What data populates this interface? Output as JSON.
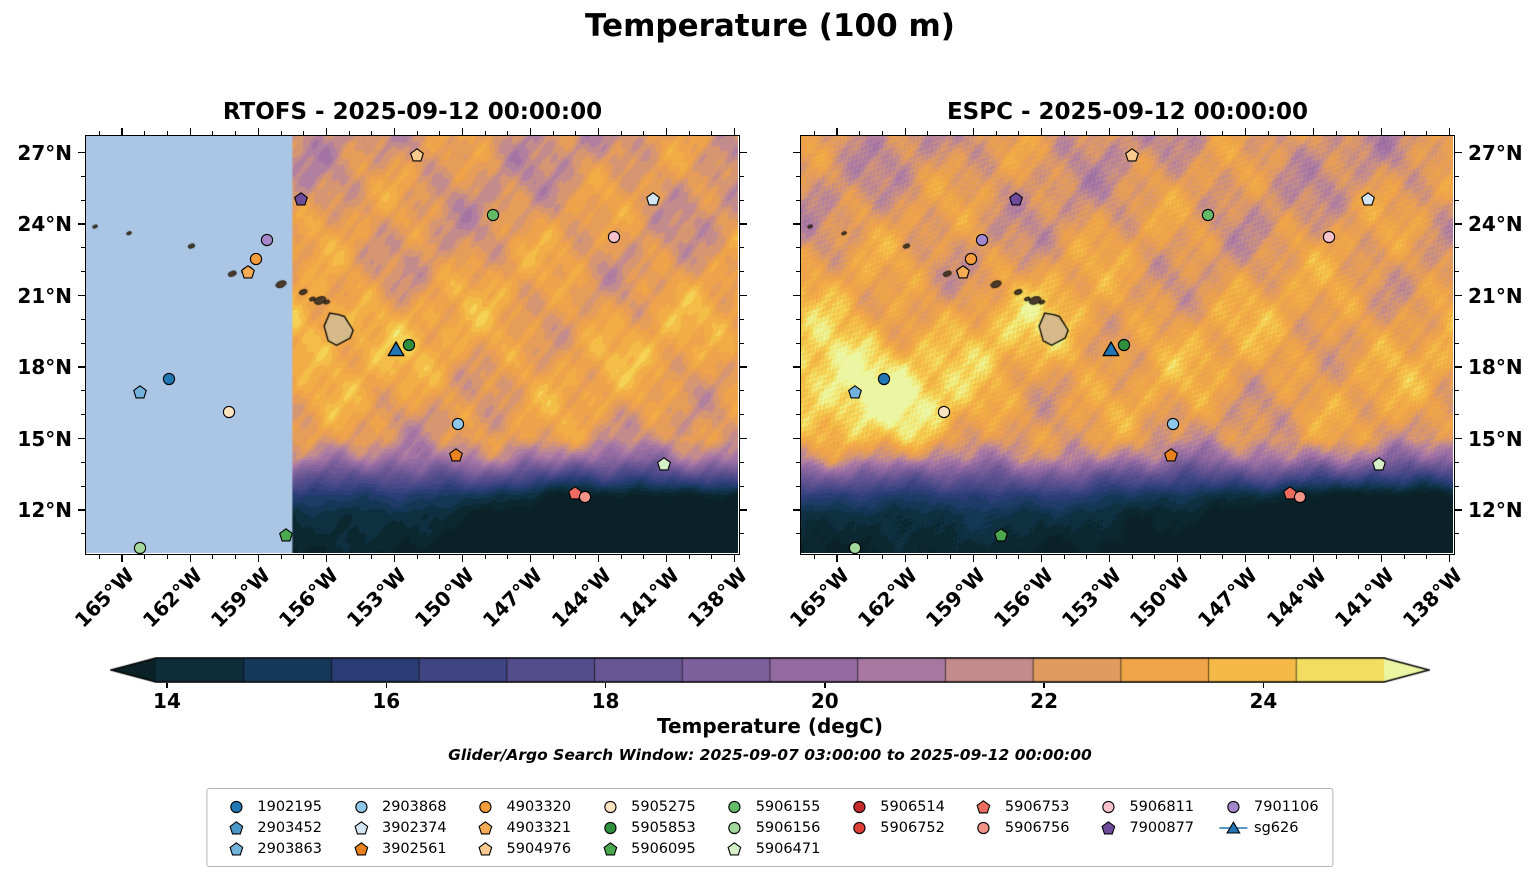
{
  "chart_data": {
    "type": "heatmap",
    "title": "Temperature (100 m)",
    "panels": [
      {
        "model": "RTOFS",
        "title": "RTOFS - 2025-09-12 00:00:00",
        "seed": 1,
        "missing_lon_west_of": 157.5,
        "warm_blobs": [
          {
            "lon_w": 156.2,
            "lat": 19.7,
            "amp": 1.3,
            "sx": 1.8,
            "sy": 1.2
          }
        ]
      },
      {
        "model": "ESPC",
        "title": "ESPC - 2025-09-12 00:00:00",
        "seed": 2,
        "missing_lon_west_of": null,
        "speckle": 0.35,
        "warm_blobs": [
          {
            "lon_w": 156.2,
            "lat": 19.7,
            "amp": 1.2,
            "sx": 1.8,
            "sy": 1.2
          },
          {
            "lon_w": 164.8,
            "lat": 17.4,
            "amp": 2.8,
            "sx": 2.3,
            "sy": 1.7
          },
          {
            "lon_w": 160.8,
            "lat": 16.0,
            "amp": 1.4,
            "sx": 2.2,
            "sy": 1.4
          }
        ]
      }
    ],
    "lon_west_range": [
      166.6,
      137.85
    ],
    "lat_range": [
      10.2,
      27.7
    ],
    "x_tick_lons_west": [
      165,
      162,
      159,
      156,
      153,
      150,
      147,
      144,
      141,
      138
    ],
    "x_tick_labels": [
      "165°W",
      "162°W",
      "159°W",
      "156°W",
      "153°W",
      "150°W",
      "147°W",
      "144°W",
      "141°W",
      "138°W"
    ],
    "y_tick_lats": [
      27,
      24,
      21,
      18,
      15,
      12
    ],
    "y_tick_labels": [
      "27°N",
      "24°N",
      "21°N",
      "18°N",
      "15°N",
      "12°N"
    ],
    "lat_temperature_profile": [
      [
        10.2,
        13.8
      ],
      [
        11.0,
        14.2
      ],
      [
        11.8,
        14.6
      ],
      [
        12.6,
        15.8
      ],
      [
        13.4,
        18.2
      ],
      [
        14.2,
        21.0
      ],
      [
        15.0,
        22.3
      ],
      [
        16.5,
        22.8
      ],
      [
        18.5,
        23.1
      ],
      [
        20.0,
        23.0
      ],
      [
        22.0,
        22.6
      ],
      [
        25.0,
        22.2
      ],
      [
        27.7,
        22.0
      ]
    ],
    "color_value_range": [
      13.7,
      25.3
    ],
    "colormap_stops": [
      [
        0.0,
        "#0a2127"
      ],
      [
        0.06,
        "#0d2f3d"
      ],
      [
        0.13,
        "#173a5e"
      ],
      [
        0.2,
        "#2c3e78"
      ],
      [
        0.28,
        "#464786"
      ],
      [
        0.36,
        "#5d5190"
      ],
      [
        0.44,
        "#755c98"
      ],
      [
        0.52,
        "#8e68a0"
      ],
      [
        0.58,
        "#a173a4"
      ],
      [
        0.64,
        "#b5819e"
      ],
      [
        0.69,
        "#cb9183"
      ],
      [
        0.74,
        "#e09b60"
      ],
      [
        0.8,
        "#efa34a"
      ],
      [
        0.86,
        "#f3b145"
      ],
      [
        0.92,
        "#f6cb4c"
      ],
      [
        0.96,
        "#f2e468"
      ],
      [
        1.0,
        "#ecf6a2"
      ]
    ],
    "missing_region_color": "#abc6e4",
    "islands": {
      "big_island": [
        [
          155.85,
          20.27
        ],
        [
          155.45,
          20.2
        ],
        [
          155.2,
          20.12
        ],
        [
          154.82,
          19.55
        ],
        [
          154.95,
          19.22
        ],
        [
          155.55,
          18.92
        ],
        [
          155.92,
          19.1
        ],
        [
          156.1,
          19.72
        ]
      ],
      "big_island_fill": "#d6ba8a",
      "small": [
        [
          166.2,
          23.9,
          1.5
        ],
        [
          164.7,
          23.62,
          1.5
        ],
        [
          161.95,
          23.08,
          2
        ],
        [
          160.15,
          21.92,
          2.5
        ],
        [
          159.5,
          22.06,
          3.2
        ],
        [
          158.0,
          21.48,
          3.2
        ],
        [
          157.02,
          21.15,
          2.4
        ],
        [
          156.62,
          20.86,
          1.8
        ],
        [
          156.28,
          20.8,
          3.6
        ],
        [
          155.98,
          20.73,
          1.8
        ]
      ],
      "small_fill": "#4a3b28"
    },
    "colorbar": {
      "value_range": [
        13.9,
        25.1
      ],
      "segment_step": 0.8,
      "ticks": [
        14,
        16,
        18,
        20,
        22,
        24
      ],
      "label": "Temperature (degC)"
    },
    "search_window_note": "Glider/Argo Search Window: 2025-09-07 03:00:00 to 2025-09-12 00:00:00",
    "markers": [
      {
        "id": "5904976",
        "lon_w": 152.0,
        "lat": 26.9
      },
      {
        "id": "7900877",
        "lon_w": 157.1,
        "lat": 25.05
      },
      {
        "id": "3902374",
        "lon_w": 141.6,
        "lat": 25.05
      },
      {
        "id": "5906155",
        "lon_w": 148.65,
        "lat": 24.4
      },
      {
        "id": "5906811",
        "lon_w": 143.3,
        "lat": 23.45
      },
      {
        "id": "7901106",
        "lon_w": 158.6,
        "lat": 23.35
      },
      {
        "id": "4903320",
        "lon_w": 159.1,
        "lat": 22.55
      },
      {
        "id": "4903321",
        "lon_w": 159.45,
        "lat": 22.0
      },
      {
        "id": "5905853",
        "lon_w": 152.35,
        "lat": 18.95
      },
      {
        "id": "sg626",
        "lon_w": 152.95,
        "lat": 18.75
      },
      {
        "id": "2903863",
        "lon_w": 164.2,
        "lat": 16.95
      },
      {
        "id": "1902195",
        "lon_w": 162.95,
        "lat": 17.5
      },
      {
        "id": "5905275",
        "lon_w": 160.3,
        "lat": 16.1
      },
      {
        "id": "2903868",
        "lon_w": 150.2,
        "lat": 15.6
      },
      {
        "id": "3902561",
        "lon_w": 150.3,
        "lat": 14.3
      },
      {
        "id": "5906471",
        "lon_w": 141.1,
        "lat": 13.95
      },
      {
        "id": "5906753",
        "lon_w": 145.05,
        "lat": 12.7
      },
      {
        "id": "5906756",
        "lon_w": 144.6,
        "lat": 12.55
      },
      {
        "id": "5906095",
        "lon_w": 157.8,
        "lat": 10.95
      },
      {
        "id": "5906156",
        "lon_w": 164.2,
        "lat": 10.4
      }
    ]
  },
  "legend": {
    "column_counts": [
      3,
      3,
      3,
      3,
      3,
      2,
      2,
      2,
      2
    ],
    "items": [
      {
        "id": "1902195",
        "shape": "circle",
        "color": "#2277b4"
      },
      {
        "id": "2903452",
        "shape": "pentagon",
        "color": "#4a98c9"
      },
      {
        "id": "2903863",
        "shape": "pentagon",
        "color": "#72b2dc"
      },
      {
        "id": "2903868",
        "shape": "circle",
        "color": "#8ec7e8"
      },
      {
        "id": "3902374",
        "shape": "pentagon",
        "color": "#d3e5f3"
      },
      {
        "id": "3902561",
        "shape": "pentagon",
        "color": "#e8821e"
      },
      {
        "id": "4903320",
        "shape": "circle",
        "color": "#f59c3c"
      },
      {
        "id": "4903321",
        "shape": "pentagon",
        "color": "#f6ac55"
      },
      {
        "id": "5904976",
        "shape": "pentagon",
        "color": "#fbca8f"
      },
      {
        "id": "5905275",
        "shape": "circle",
        "color": "#fbe3c0"
      },
      {
        "id": "5905853",
        "shape": "circle",
        "color": "#2f8f3c"
      },
      {
        "id": "5906095",
        "shape": "pentagon",
        "color": "#4aa84e"
      },
      {
        "id": "5906155",
        "shape": "circle",
        "color": "#63bb67"
      },
      {
        "id": "5906156",
        "shape": "circle",
        "color": "#a3d99c"
      },
      {
        "id": "5906471",
        "shape": "pentagon",
        "color": "#d6efc8"
      },
      {
        "id": "5906514",
        "shape": "circle",
        "color": "#c62b2b"
      },
      {
        "id": "5906752",
        "shape": "circle",
        "color": "#e04038"
      },
      {
        "id": "5906753",
        "shape": "pentagon",
        "color": "#ee6b5f"
      },
      {
        "id": "5906756",
        "shape": "circle",
        "color": "#f29488"
      },
      {
        "id": "5906811",
        "shape": "circle",
        "color": "#f6c3cd"
      },
      {
        "id": "7900877",
        "shape": "pentagon",
        "color": "#6f4c9b"
      },
      {
        "id": "7901106",
        "shape": "circle",
        "color": "#a488cb"
      },
      {
        "id": "sg626",
        "shape": "glider",
        "color": "#2077b4"
      }
    ]
  }
}
